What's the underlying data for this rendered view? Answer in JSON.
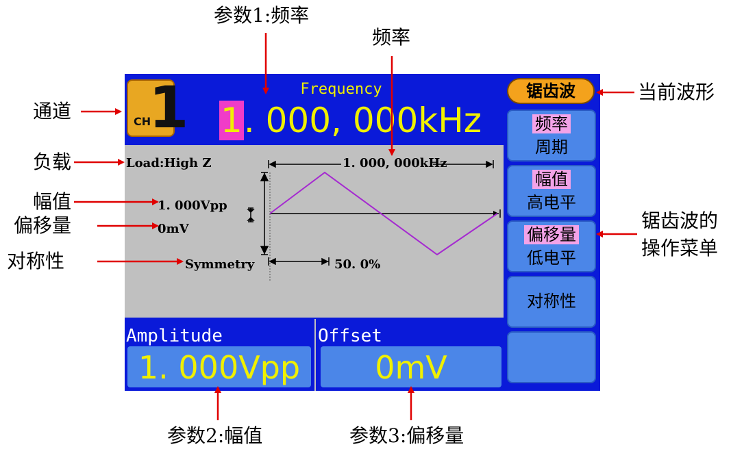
{
  "callouts": {
    "param1": "参数1:频率",
    "freq": "频率",
    "channel": "通道",
    "load": "负载",
    "amplitude": "幅值",
    "offset": "偏移量",
    "symmetry": "对称性",
    "current_wave": "当前波形",
    "menu_line1": "锯齿波的",
    "menu_line2": "操作菜单",
    "param2": "参数2:幅值",
    "param3": "参数3:偏移量"
  },
  "screen": {
    "channel_label": "CH",
    "channel_number": "1",
    "param_name": "Frequency",
    "freq_cursor_digit": "1",
    "freq_rest": ". 000, 000kHz",
    "load": "Load:High Z",
    "wave_freq": "1. 000, 000kHz",
    "amplitude_readout": "1. 000Vpp",
    "offset_readout": "0mV",
    "symmetry_label": "Symmetry",
    "symmetry_value": "50. 0%",
    "bottom_param1_title": "Amplitude",
    "bottom_param1_value": "1. 000Vpp",
    "bottom_param2_title": "Offset",
    "bottom_param2_value": "0mV",
    "symmetry_percent": 50
  },
  "menu": {
    "title": "锯齿波",
    "items": [
      {
        "line1": "频率",
        "line2": "周期"
      },
      {
        "line1": "幅值",
        "line2": "高电平"
      },
      {
        "line1": "偏移量",
        "line2": "低电平"
      },
      {
        "line1": "对称性",
        "line2": ""
      },
      {
        "line1": "",
        "line2": ""
      }
    ]
  },
  "colors": {
    "screen_bg": "#0a1ad9",
    "accent_text": "#f0f000",
    "waveform": "#a52ad0",
    "callout_arrow": "#e00000"
  }
}
